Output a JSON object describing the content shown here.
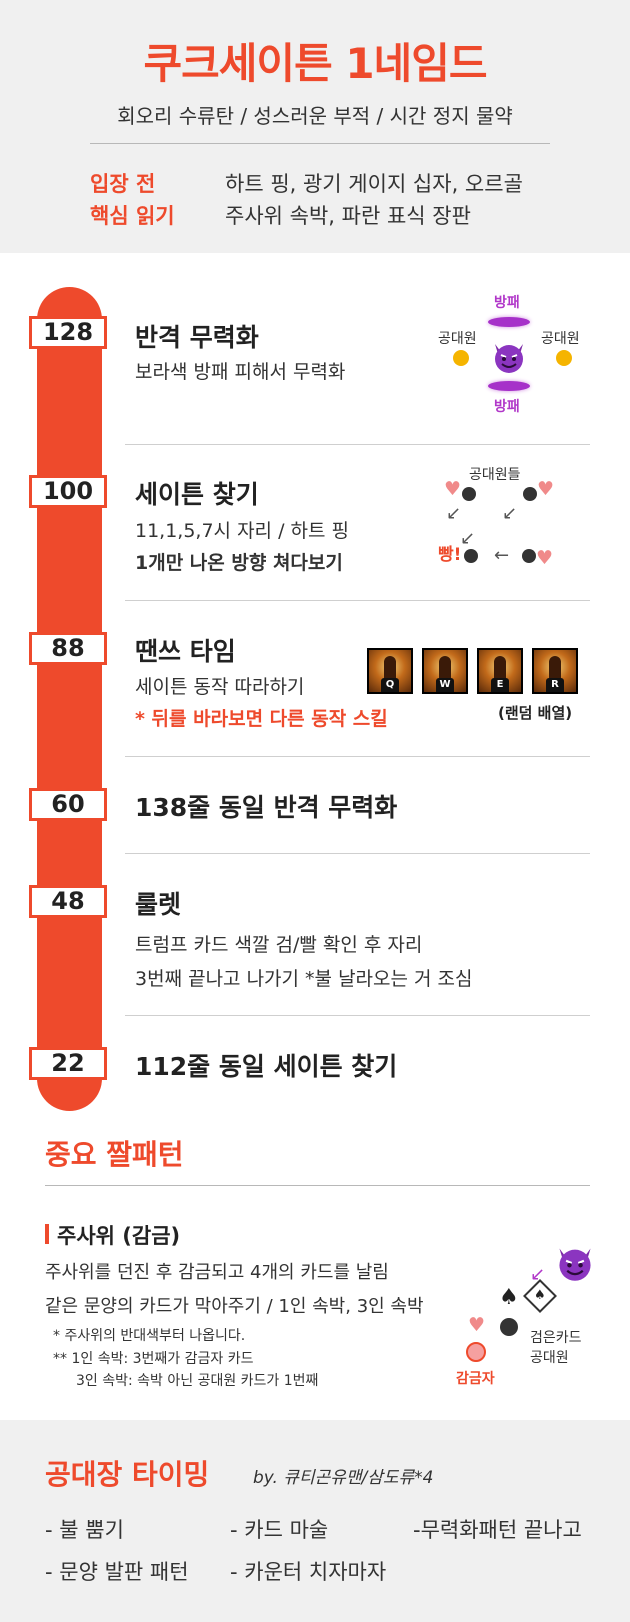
{
  "header": {
    "title": "쿠크세이튼 1네임드",
    "subtitle": "회오리 수류탄 / 성스러운 부적 / 시간 정지 물약",
    "entry_label_1": "입장 전",
    "entry_label_2": "핵심 읽기",
    "entry_text_1": "하트 핑, 광기 게이지 십자, 오르골",
    "entry_text_2": "주사위 속박, 파란 표식 장판"
  },
  "phases": [
    {
      "hp": "128",
      "title": "반격 무력화",
      "lines": [
        "보라색 방패 피해서 무력화"
      ],
      "diagram": {
        "shield_top": "방패",
        "shield_bottom": "방패",
        "player_left": "공대원",
        "player_right": "공대원"
      }
    },
    {
      "hp": "100",
      "title": "세이튼 찾기",
      "lines": [
        "11,1,5,7시 자리 / 하트 핑",
        "1개만 나온 방향 쳐다보기"
      ],
      "diagram": {
        "players": "공대원들",
        "bang": "빵!"
      }
    },
    {
      "hp": "88",
      "title": "땐쓰 타임",
      "lines": [
        "세이튼 동작 따라하기",
        "* 뒤를 바라보면 다른 동작 스킬"
      ],
      "skills": [
        "Q",
        "W",
        "E",
        "R"
      ],
      "random": "(랜덤 배열)"
    },
    {
      "hp": "60",
      "title": "138줄 동일 반격 무력화"
    },
    {
      "hp": "48",
      "title": "룰렛",
      "lines": [
        "트럼프 카드 색깔 검/빨 확인 후 자리",
        "3번째 끝나고 나가기 *불 날라오는 거 조심"
      ]
    },
    {
      "hp": "22",
      "title": "112줄 동일 세이튼 찾기"
    }
  ],
  "important": {
    "title": "중요 짤패턴",
    "dice_title": "주사위 (감금)",
    "line1": "주사위를 던진 후 감금되고 4개의 카드를 날림",
    "line2": "같은 문양의 카드가 막아주기 / 1인 속박, 3인 속박",
    "note1": "* 주사위의 반대색부터 나옵니다.",
    "note2": "** 1인 속박: 3번째가 감금자 카드",
    "note3": "3인 속박: 속박 아닌 공대원 카드가 1번째",
    "prisoner": "감금자",
    "black_card_1": "검은카드",
    "black_card_2": "공대원"
  },
  "bottom": {
    "title": "공대장 타이밍",
    "by": "by. 큐티곤유맨/삼도류*4",
    "items": [
      "- 불 뿜기",
      "- 카드 마술",
      "-무력화패턴 끝나고",
      "- 문양 발판 패턴",
      "- 카운터 치자마자"
    ]
  },
  "colors": {
    "accent": "#ee4a2c",
    "shield": "#a631c9",
    "coin": "#f5b400",
    "heart": "#f08a8a"
  }
}
